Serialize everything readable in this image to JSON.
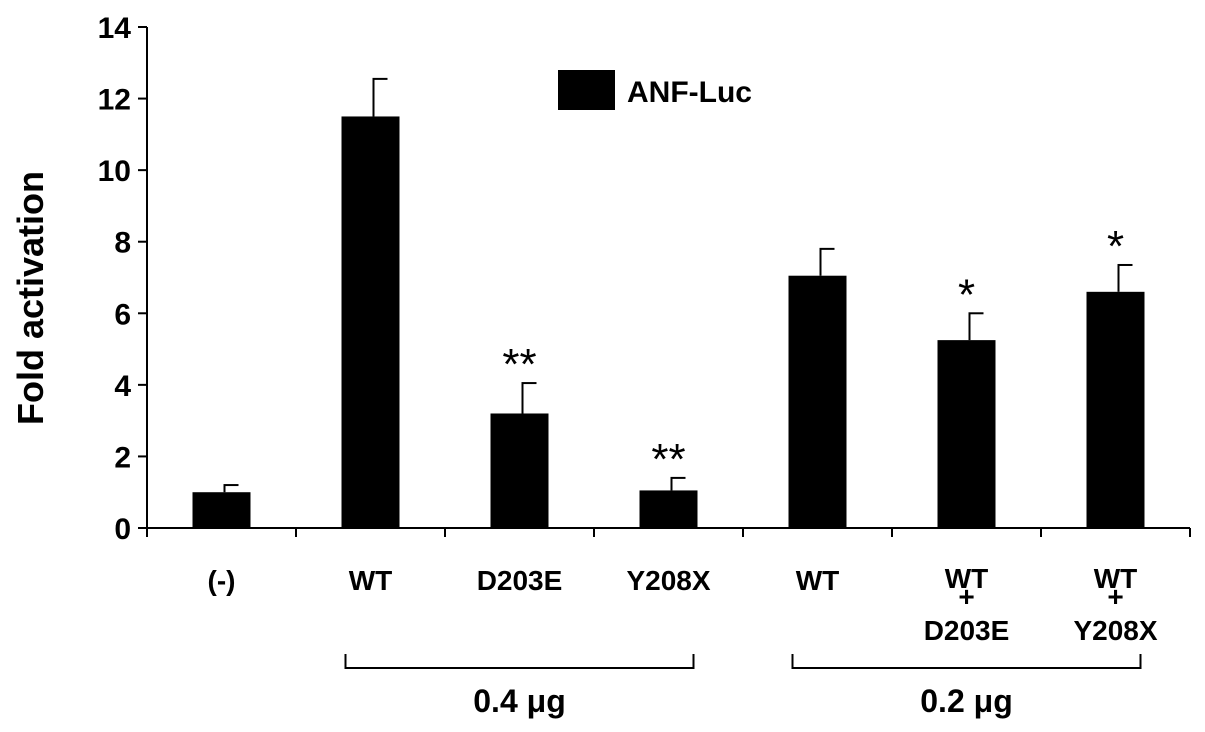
{
  "chart_data": {
    "type": "bar",
    "title": "",
    "xlabel": "",
    "ylabel": "Fold activation",
    "ylim": [
      0,
      14
    ],
    "yticks": [
      0,
      2,
      4,
      6,
      8,
      10,
      12,
      14
    ],
    "grid": false,
    "legend_position": "top-center",
    "series": [
      {
        "name": "ANF-Luc",
        "color": "#000000",
        "values": [
          1.0,
          11.5,
          3.2,
          1.05,
          7.05,
          5.25,
          6.6
        ],
        "errors": [
          0.2,
          1.05,
          0.85,
          0.35,
          0.75,
          0.75,
          0.75
        ]
      }
    ],
    "categories": [
      {
        "lines": [
          "(-)"
        ],
        "significance": ""
      },
      {
        "lines": [
          "WT"
        ],
        "significance": ""
      },
      {
        "lines": [
          "D203E"
        ],
        "significance": "**"
      },
      {
        "lines": [
          "Y208X"
        ],
        "significance": "**"
      },
      {
        "lines": [
          "WT"
        ],
        "significance": ""
      },
      {
        "lines": [
          "WT",
          "+",
          "D203E"
        ],
        "significance": "*"
      },
      {
        "lines": [
          "WT",
          "+",
          "Y208X"
        ],
        "significance": "*"
      }
    ],
    "groups": [
      {
        "label": "0.4 μg",
        "from": 1,
        "to": 3
      },
      {
        "label": "0.2 μg",
        "from": 4,
        "to": 6
      }
    ]
  }
}
